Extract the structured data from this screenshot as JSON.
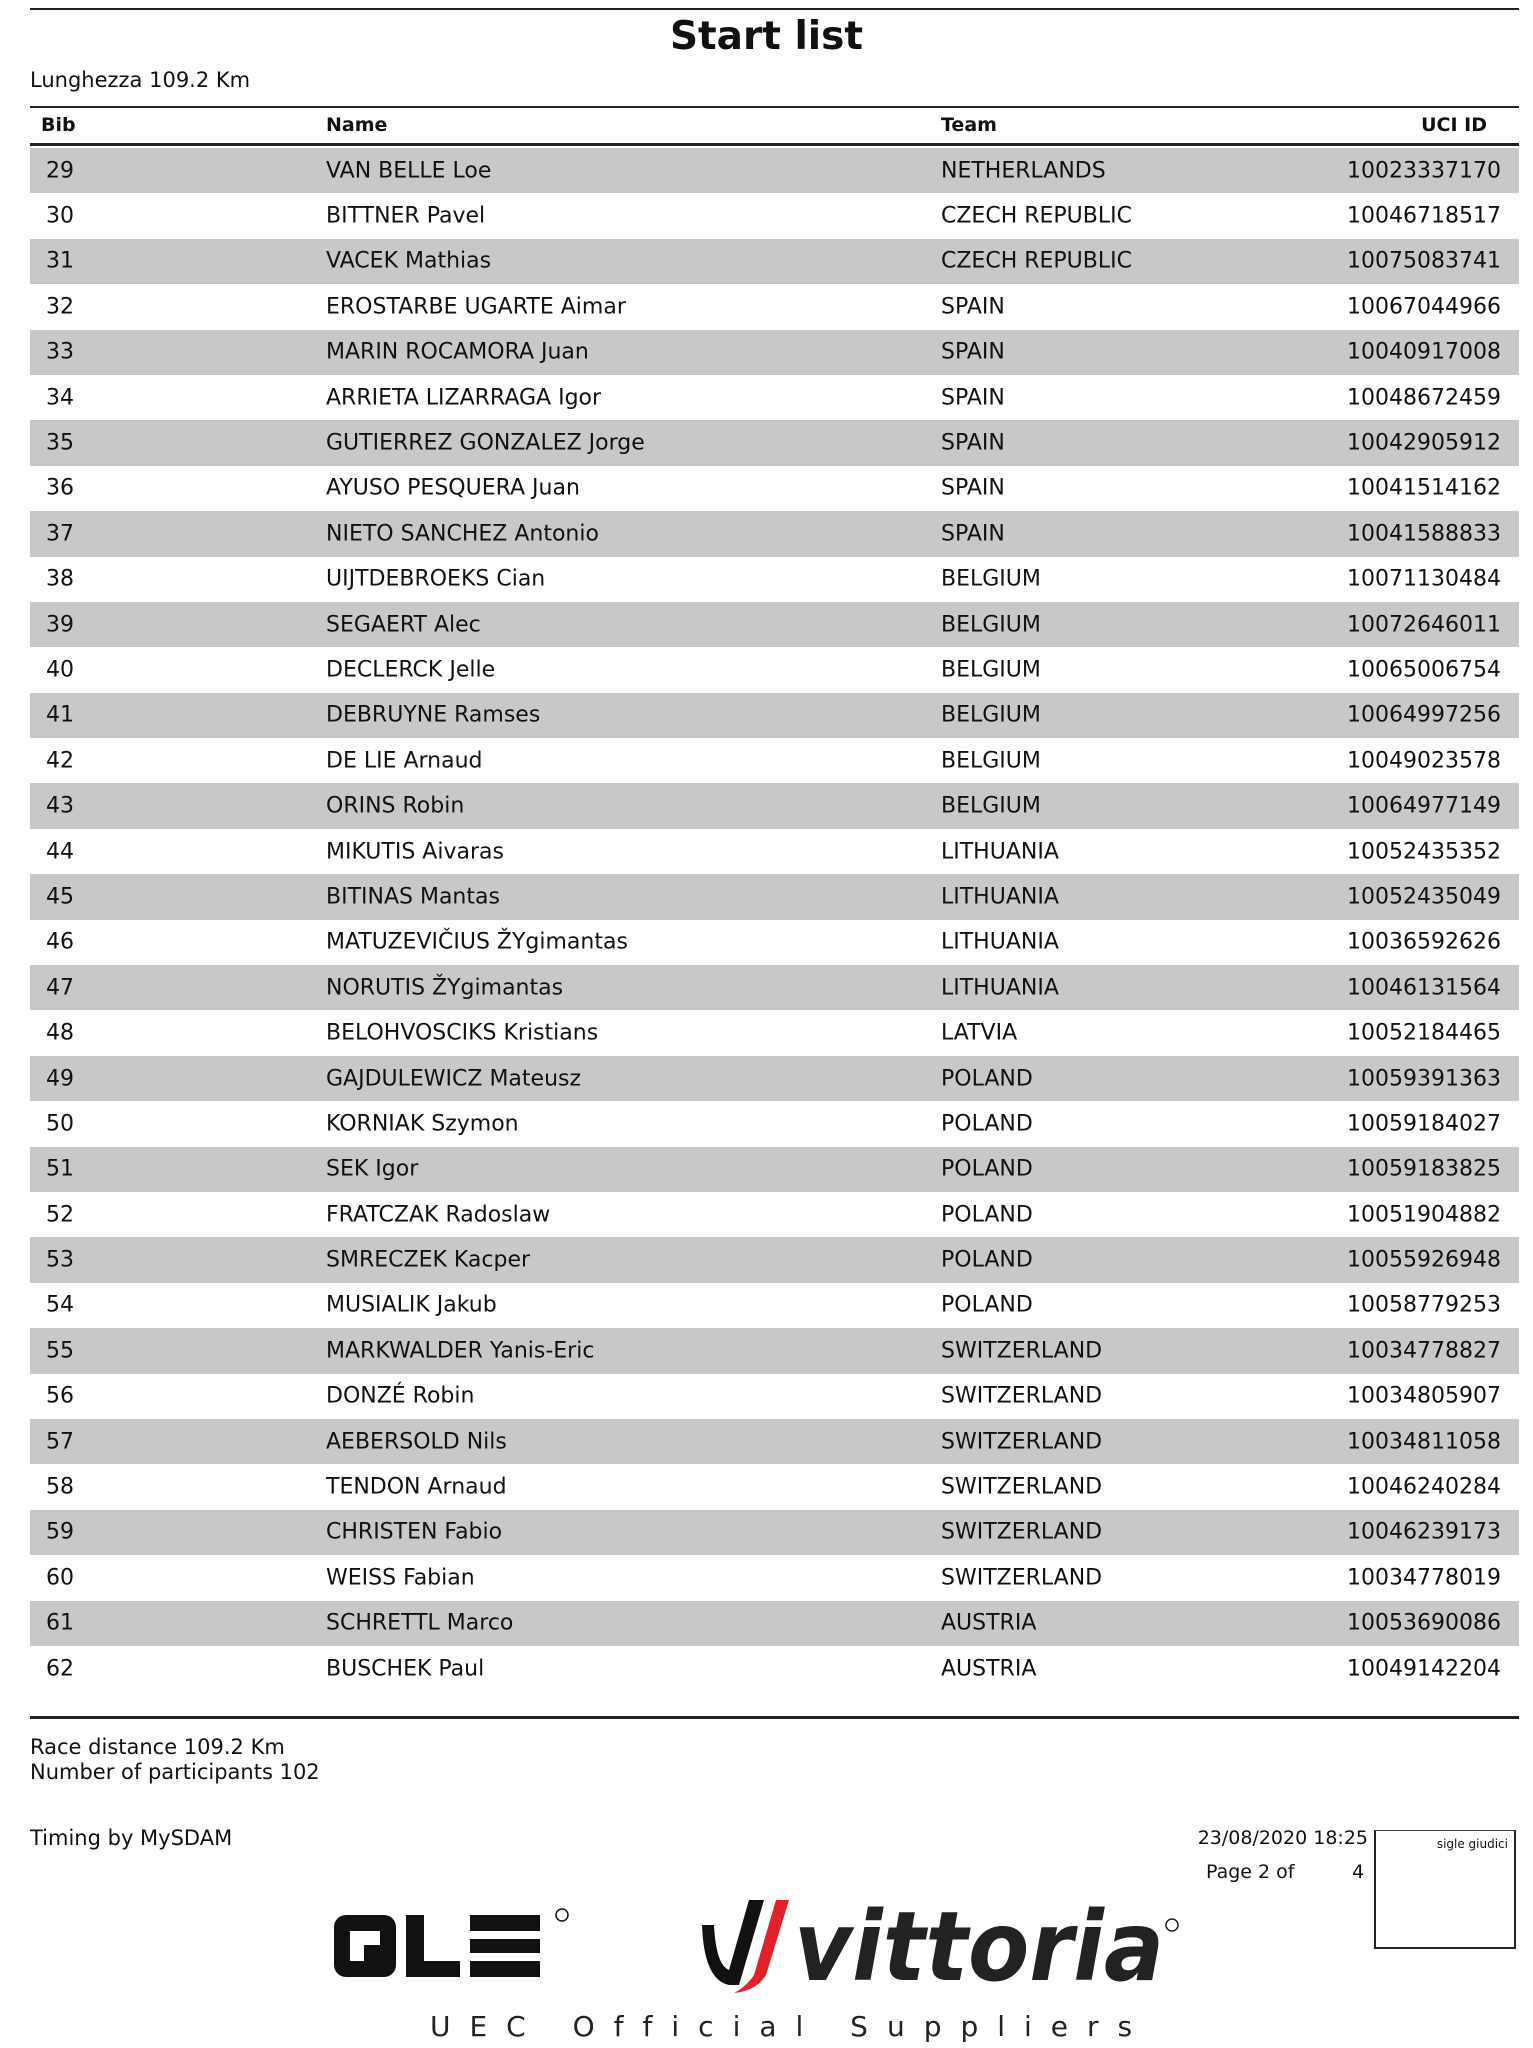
{
  "title": "Start list",
  "length": "Lunghezza 109.2 Km",
  "columns": {
    "bib": "Bib",
    "name": "Name",
    "team": "Team",
    "uci": "UCI ID"
  },
  "rows": [
    {
      "bib": "29",
      "name": "VAN BELLE Loe",
      "team": "NETHERLANDS",
      "uci": "10023337170"
    },
    {
      "bib": "30",
      "name": "BITTNER Pavel",
      "team": "CZECH REPUBLIC",
      "uci": "10046718517"
    },
    {
      "bib": "31",
      "name": "VACEK Mathias",
      "team": "CZECH REPUBLIC",
      "uci": "10075083741"
    },
    {
      "bib": "32",
      "name": "EROSTARBE UGARTE Aimar",
      "team": "SPAIN",
      "uci": "10067044966"
    },
    {
      "bib": "33",
      "name": "MARIN ROCAMORA Juan",
      "team": "SPAIN",
      "uci": "10040917008"
    },
    {
      "bib": "34",
      "name": "ARRIETA LIZARRAGA Igor",
      "team": "SPAIN",
      "uci": "10048672459"
    },
    {
      "bib": "35",
      "name": "GUTIERREZ GONZALEZ Jorge",
      "team": "SPAIN",
      "uci": "10042905912"
    },
    {
      "bib": "36",
      "name": "AYUSO PESQUERA Juan",
      "team": "SPAIN",
      "uci": "10041514162"
    },
    {
      "bib": "37",
      "name": "NIETO SANCHEZ Antonio",
      "team": "SPAIN",
      "uci": "10041588833"
    },
    {
      "bib": "38",
      "name": "UIJTDEBROEKS Cian",
      "team": "BELGIUM",
      "uci": "10071130484"
    },
    {
      "bib": "39",
      "name": "SEGAERT Alec",
      "team": "BELGIUM",
      "uci": "10072646011"
    },
    {
      "bib": "40",
      "name": "DECLERCK Jelle",
      "team": "BELGIUM",
      "uci": "10065006754"
    },
    {
      "bib": "41",
      "name": "DEBRUYNE Ramses",
      "team": "BELGIUM",
      "uci": "10064997256"
    },
    {
      "bib": "42",
      "name": "DE LIE Arnaud",
      "team": "BELGIUM",
      "uci": "10049023578"
    },
    {
      "bib": "43",
      "name": "ORINS Robin",
      "team": "BELGIUM",
      "uci": "10064977149"
    },
    {
      "bib": "44",
      "name": "MIKUTIS Aivaras",
      "team": "LITHUANIA",
      "uci": "10052435352"
    },
    {
      "bib": "45",
      "name": "BITINAS Mantas",
      "team": "LITHUANIA",
      "uci": "10052435049"
    },
    {
      "bib": "46",
      "name": "MATUZEVIČIUS ŽYgimantas",
      "team": "LITHUANIA",
      "uci": "10036592626"
    },
    {
      "bib": "47",
      "name": "NORUTIS ŽYgimantas",
      "team": "LITHUANIA",
      "uci": "10046131564"
    },
    {
      "bib": "48",
      "name": "BELOHVOSCIKS Kristians",
      "team": "LATVIA",
      "uci": "10052184465"
    },
    {
      "bib": "49",
      "name": "GAJDULEWICZ Mateusz",
      "team": "POLAND",
      "uci": "10059391363"
    },
    {
      "bib": "50",
      "name": "KORNIAK Szymon",
      "team": "POLAND",
      "uci": "10059184027"
    },
    {
      "bib": "51",
      "name": "SEK Igor",
      "team": "POLAND",
      "uci": "10059183825"
    },
    {
      "bib": "52",
      "name": "FRATCZAK Radoslaw",
      "team": "POLAND",
      "uci": "10051904882"
    },
    {
      "bib": "53",
      "name": "SMRECZEK Kacper",
      "team": "POLAND",
      "uci": "10055926948"
    },
    {
      "bib": "54",
      "name": "MUSIALIK Jakub",
      "team": "POLAND",
      "uci": "10058779253"
    },
    {
      "bib": "55",
      "name": "MARKWALDER Yanis-Eric",
      "team": "SWITZERLAND",
      "uci": "10034778827"
    },
    {
      "bib": "56",
      "name": "DONZÉ Robin",
      "team": "SWITZERLAND",
      "uci": "10034805907"
    },
    {
      "bib": "57",
      "name": "AEBERSOLD Nils",
      "team": "SWITZERLAND",
      "uci": "10034811058"
    },
    {
      "bib": "58",
      "name": "TENDON Arnaud",
      "team": "SWITZERLAND",
      "uci": "10046240284"
    },
    {
      "bib": "59",
      "name": "CHRISTEN Fabio",
      "team": "SWITZERLAND",
      "uci": "10046239173"
    },
    {
      "bib": "60",
      "name": "WEISS Fabian",
      "team": "SWITZERLAND",
      "uci": "10034778019"
    },
    {
      "bib": "61",
      "name": "SCHRETTL Marco",
      "team": "AUSTRIA",
      "uci": "10053690086"
    },
    {
      "bib": "62",
      "name": "BUSCHEK Paul",
      "team": "AUSTRIA",
      "uci": "10049142204"
    }
  ],
  "footer": {
    "race_distance": "Race distance 109.2 Km",
    "participants": "Number of participants 102",
    "timing": "Timing by MySDAM",
    "datetime": "23/08/2020 18:25",
    "page_label": "Page 2 of",
    "page_total": "4",
    "judges_box_label": "sigle giudici",
    "suppliers": "UEC Official Suppliers"
  },
  "logos": {
    "ale": "ALE",
    "vittoria": "vittoria"
  },
  "colors": {
    "row_stripe": "#c8c8c8",
    "vittoria_red": "#e3202a"
  }
}
